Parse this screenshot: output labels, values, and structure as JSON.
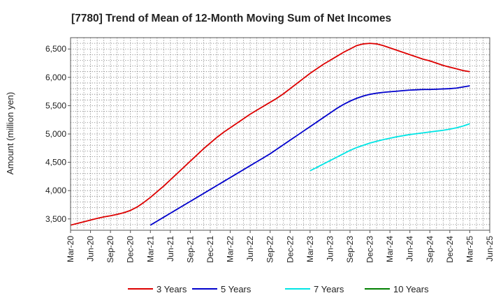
{
  "chart_data": {
    "type": "line",
    "title": "[7780]  Trend of Mean of 12-Month Moving Sum of Net Incomes",
    "xlabel": "",
    "ylabel": "Amount (million yen)",
    "ylim": [
      3300,
      6700
    ],
    "yticks": [
      3500,
      4000,
      4500,
      5000,
      5500,
      6000,
      6500
    ],
    "ytick_labels": [
      "3,500",
      "4,000",
      "4,500",
      "5,000",
      "5,500",
      "6,000",
      "6,500"
    ],
    "xticks": [
      "Mar-20",
      "Jun-20",
      "Sep-20",
      "Dec-20",
      "Mar-21",
      "Jun-21",
      "Sep-21",
      "Dec-21",
      "Mar-22",
      "Jun-22",
      "Sep-22",
      "Dec-22",
      "Mar-23",
      "Jun-23",
      "Sep-23",
      "Dec-23",
      "Mar-24",
      "Jun-24",
      "Sep-24",
      "Dec-24",
      "Mar-25",
      "Jun-25"
    ],
    "grid": true,
    "legend_position": "bottom",
    "series": [
      {
        "name": "3 Years",
        "color": "#dd0000",
        "points": [
          [
            "Mar-20",
            3390
          ],
          [
            "Apr-20",
            3420
          ],
          [
            "May-20",
            3450
          ],
          [
            "Jun-20",
            3480
          ],
          [
            "Jul-20",
            3510
          ],
          [
            "Aug-20",
            3535
          ],
          [
            "Sep-20",
            3555
          ],
          [
            "Oct-20",
            3580
          ],
          [
            "Nov-20",
            3610
          ],
          [
            "Dec-20",
            3650
          ],
          [
            "Jan-21",
            3710
          ],
          [
            "Feb-21",
            3790
          ],
          [
            "Mar-21",
            3880
          ],
          [
            "Apr-21",
            3980
          ],
          [
            "May-21",
            4080
          ],
          [
            "Jun-21",
            4190
          ],
          [
            "Jul-21",
            4300
          ],
          [
            "Aug-21",
            4410
          ],
          [
            "Sep-21",
            4520
          ],
          [
            "Oct-21",
            4630
          ],
          [
            "Nov-21",
            4740
          ],
          [
            "Dec-21",
            4840
          ],
          [
            "Jan-22",
            4940
          ],
          [
            "Feb-22",
            5030
          ],
          [
            "Mar-22",
            5110
          ],
          [
            "Apr-22",
            5190
          ],
          [
            "May-22",
            5270
          ],
          [
            "Jun-22",
            5350
          ],
          [
            "Jul-22",
            5420
          ],
          [
            "Aug-22",
            5490
          ],
          [
            "Sep-22",
            5560
          ],
          [
            "Oct-22",
            5630
          ],
          [
            "Nov-22",
            5710
          ],
          [
            "Dec-22",
            5800
          ],
          [
            "Jan-23",
            5890
          ],
          [
            "Feb-23",
            5980
          ],
          [
            "Mar-23",
            6070
          ],
          [
            "Apr-23",
            6150
          ],
          [
            "May-23",
            6230
          ],
          [
            "Jun-23",
            6300
          ],
          [
            "Jul-23",
            6370
          ],
          [
            "Aug-23",
            6440
          ],
          [
            "Sep-23",
            6500
          ],
          [
            "Oct-23",
            6560
          ],
          [
            "Nov-23",
            6590
          ],
          [
            "Dec-23",
            6600
          ],
          [
            "Jan-24",
            6590
          ],
          [
            "Feb-24",
            6560
          ],
          [
            "Mar-24",
            6520
          ],
          [
            "Apr-24",
            6480
          ],
          [
            "May-24",
            6440
          ],
          [
            "Jun-24",
            6400
          ],
          [
            "Jul-24",
            6360
          ],
          [
            "Aug-24",
            6320
          ],
          [
            "Sep-24",
            6290
          ],
          [
            "Oct-24",
            6250
          ],
          [
            "Nov-24",
            6210
          ],
          [
            "Dec-24",
            6180
          ],
          [
            "Jan-25",
            6150
          ],
          [
            "Feb-25",
            6120
          ],
          [
            "Mar-25",
            6100
          ]
        ]
      },
      {
        "name": "5 Years",
        "color": "#0000cc",
        "points": [
          [
            "Mar-21",
            3390
          ],
          [
            "Apr-21",
            3460
          ],
          [
            "May-21",
            3530
          ],
          [
            "Jun-21",
            3600
          ],
          [
            "Jul-21",
            3670
          ],
          [
            "Aug-21",
            3740
          ],
          [
            "Sep-21",
            3810
          ],
          [
            "Oct-21",
            3880
          ],
          [
            "Nov-21",
            3950
          ],
          [
            "Dec-21",
            4020
          ],
          [
            "Jan-22",
            4090
          ],
          [
            "Feb-22",
            4160
          ],
          [
            "Mar-22",
            4230
          ],
          [
            "Apr-22",
            4300
          ],
          [
            "May-22",
            4370
          ],
          [
            "Jun-22",
            4440
          ],
          [
            "Jul-22",
            4510
          ],
          [
            "Aug-22",
            4580
          ],
          [
            "Sep-22",
            4650
          ],
          [
            "Oct-22",
            4730
          ],
          [
            "Nov-22",
            4810
          ],
          [
            "Dec-22",
            4890
          ],
          [
            "Jan-23",
            4970
          ],
          [
            "Feb-23",
            5050
          ],
          [
            "Mar-23",
            5130
          ],
          [
            "Apr-23",
            5210
          ],
          [
            "May-23",
            5290
          ],
          [
            "Jun-23",
            5370
          ],
          [
            "Jul-23",
            5450
          ],
          [
            "Aug-23",
            5520
          ],
          [
            "Sep-23",
            5580
          ],
          [
            "Oct-23",
            5630
          ],
          [
            "Nov-23",
            5670
          ],
          [
            "Dec-23",
            5700
          ],
          [
            "Jan-24",
            5720
          ],
          [
            "Feb-24",
            5735
          ],
          [
            "Mar-24",
            5745
          ],
          [
            "Apr-24",
            5755
          ],
          [
            "May-24",
            5765
          ],
          [
            "Jun-24",
            5775
          ],
          [
            "Jul-24",
            5780
          ],
          [
            "Aug-24",
            5785
          ],
          [
            "Sep-24",
            5785
          ],
          [
            "Oct-24",
            5790
          ],
          [
            "Nov-24",
            5795
          ],
          [
            "Dec-24",
            5800
          ],
          [
            "Jan-25",
            5810
          ],
          [
            "Feb-25",
            5830
          ],
          [
            "Mar-25",
            5850
          ]
        ]
      },
      {
        "name": "7 Years",
        "color": "#00e5e5",
        "points": [
          [
            "Mar-23",
            4350
          ],
          [
            "Apr-23",
            4410
          ],
          [
            "May-23",
            4470
          ],
          [
            "Jun-23",
            4530
          ],
          [
            "Jul-23",
            4590
          ],
          [
            "Aug-23",
            4650
          ],
          [
            "Sep-23",
            4710
          ],
          [
            "Oct-23",
            4760
          ],
          [
            "Nov-23",
            4800
          ],
          [
            "Dec-23",
            4840
          ],
          [
            "Jan-24",
            4870
          ],
          [
            "Feb-24",
            4900
          ],
          [
            "Mar-24",
            4925
          ],
          [
            "Apr-24",
            4950
          ],
          [
            "May-24",
            4970
          ],
          [
            "Jun-24",
            4990
          ],
          [
            "Jul-24",
            5005
          ],
          [
            "Aug-24",
            5020
          ],
          [
            "Sep-24",
            5035
          ],
          [
            "Oct-24",
            5050
          ],
          [
            "Nov-24",
            5065
          ],
          [
            "Dec-24",
            5085
          ],
          [
            "Jan-25",
            5110
          ],
          [
            "Feb-25",
            5140
          ],
          [
            "Mar-25",
            5180
          ]
        ]
      },
      {
        "name": "10 Years",
        "color": "#008000",
        "points": []
      }
    ]
  }
}
